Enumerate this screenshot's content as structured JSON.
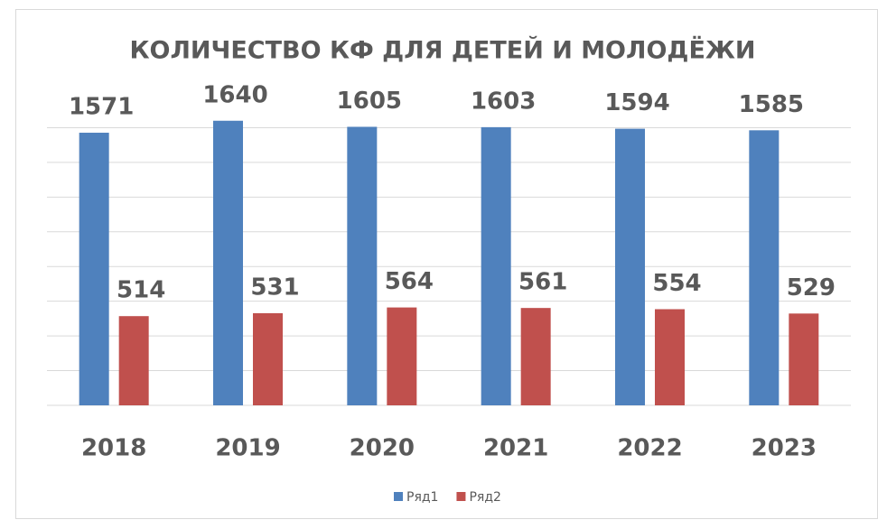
{
  "chart_data": {
    "type": "bar",
    "title": "КОЛИЧЕСТВО   КФ ДЛЯ ДЕТЕЙ  И  МОЛОДЁЖИ",
    "categories": [
      "2018",
      "2019",
      "2020",
      "2021",
      "2022",
      "2023"
    ],
    "series": [
      {
        "name": "Ряд1",
        "color": "#4f81bd",
        "values": [
          1571,
          1640,
          1605,
          1603,
          1594,
          1585
        ]
      },
      {
        "name": "Ряд2",
        "color": "#c0504d",
        "values": [
          514,
          531,
          564,
          561,
          554,
          529
        ]
      }
    ],
    "ylim": [
      0,
      1800
    ],
    "yticks": [
      0,
      200,
      400,
      600,
      800,
      1000,
      1200,
      1400,
      1600
    ],
    "grid": true,
    "legend": "bottom"
  }
}
